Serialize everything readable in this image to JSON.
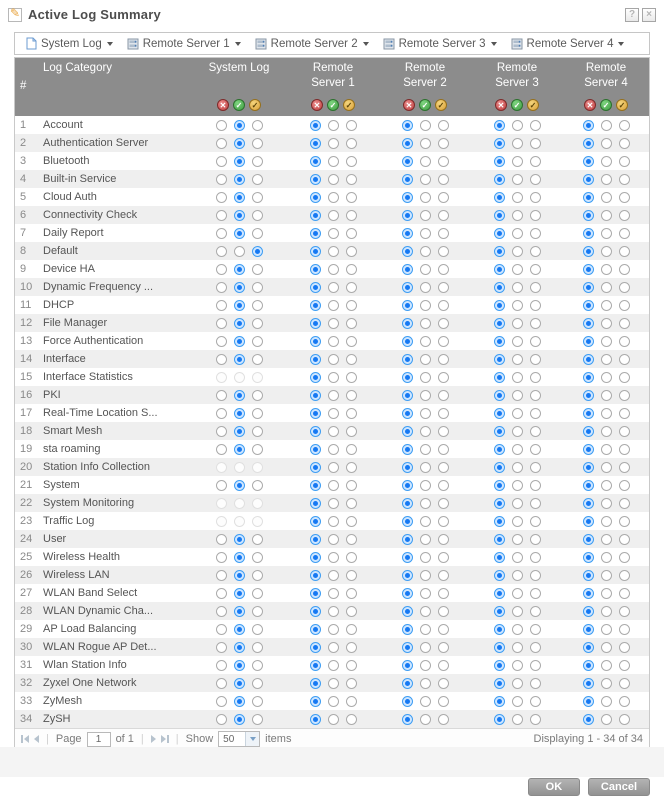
{
  "window": {
    "title": "Active Log Summary",
    "help_label": "?",
    "close_label": "×"
  },
  "colors": {
    "header_bg": "#8c8c8c",
    "row_alt": "#efefef",
    "accent_blue": "#3d9df3",
    "disable_red": "#bf4040",
    "enable_green": "#3f9e41",
    "debug_yellow": "#dba23a",
    "button_gray": "#9a9a9a"
  },
  "toolbar": {
    "buttons": [
      {
        "label": "System Log",
        "icon": "file-icon"
      },
      {
        "label": "Remote Server 1",
        "icon": "server-icon"
      },
      {
        "label": "Remote Server 2",
        "icon": "server-icon"
      },
      {
        "label": "Remote Server 3",
        "icon": "server-icon"
      },
      {
        "label": "Remote Server 4",
        "icon": "server-icon"
      }
    ]
  },
  "table": {
    "header": {
      "num": "#",
      "category": "Log Category",
      "columns": [
        [
          "System Log"
        ],
        [
          "Remote",
          "Server 1"
        ],
        [
          "Remote",
          "Server 2"
        ],
        [
          "Remote",
          "Server 3"
        ],
        [
          "Remote",
          "Server 4"
        ]
      ],
      "legend_meaning": [
        "disable",
        "enable",
        "debug"
      ]
    },
    "rows": [
      {
        "num": "1",
        "label": "Account",
        "sel": [
          1,
          0,
          0,
          0,
          0
        ]
      },
      {
        "num": "2",
        "label": "Authentication Server",
        "sel": [
          1,
          0,
          0,
          0,
          0
        ]
      },
      {
        "num": "3",
        "label": "Bluetooth",
        "sel": [
          1,
          0,
          0,
          0,
          0
        ]
      },
      {
        "num": "4",
        "label": "Built-in Service",
        "sel": [
          1,
          0,
          0,
          0,
          0
        ]
      },
      {
        "num": "5",
        "label": "Cloud Auth",
        "sel": [
          1,
          0,
          0,
          0,
          0
        ]
      },
      {
        "num": "6",
        "label": "Connectivity Check",
        "sel": [
          1,
          0,
          0,
          0,
          0
        ]
      },
      {
        "num": "7",
        "label": "Daily Report",
        "sel": [
          1,
          0,
          0,
          0,
          0
        ]
      },
      {
        "num": "8",
        "label": "Default",
        "sel": [
          2,
          0,
          0,
          0,
          0
        ]
      },
      {
        "num": "9",
        "label": "Device HA",
        "sel": [
          1,
          0,
          0,
          0,
          0
        ]
      },
      {
        "num": "10",
        "label": "Dynamic Frequency ...",
        "sel": [
          1,
          0,
          0,
          0,
          0
        ]
      },
      {
        "num": "11",
        "label": "DHCP",
        "sel": [
          1,
          0,
          0,
          0,
          0
        ]
      },
      {
        "num": "12",
        "label": "File Manager",
        "sel": [
          1,
          0,
          0,
          0,
          0
        ]
      },
      {
        "num": "13",
        "label": "Force Authentication",
        "sel": [
          1,
          0,
          0,
          0,
          0
        ]
      },
      {
        "num": "14",
        "label": "Interface",
        "sel": [
          1,
          0,
          0,
          0,
          0
        ]
      },
      {
        "num": "15",
        "label": "Interface Statistics",
        "sel": [
          -1,
          0,
          0,
          0,
          0
        ]
      },
      {
        "num": "16",
        "label": "PKI",
        "sel": [
          1,
          0,
          0,
          0,
          0
        ]
      },
      {
        "num": "17",
        "label": "Real-Time Location S...",
        "sel": [
          1,
          0,
          0,
          0,
          0
        ]
      },
      {
        "num": "18",
        "label": "Smart Mesh",
        "sel": [
          1,
          0,
          0,
          0,
          0
        ]
      },
      {
        "num": "19",
        "label": "sta roaming",
        "sel": [
          1,
          0,
          0,
          0,
          0
        ]
      },
      {
        "num": "20",
        "label": "Station Info Collection",
        "sel": [
          -1,
          0,
          0,
          0,
          0
        ]
      },
      {
        "num": "21",
        "label": "System",
        "sel": [
          1,
          0,
          0,
          0,
          0
        ]
      },
      {
        "num": "22",
        "label": "System Monitoring",
        "sel": [
          -1,
          0,
          0,
          0,
          0
        ]
      },
      {
        "num": "23",
        "label": "Traffic Log",
        "sel": [
          -1,
          0,
          0,
          0,
          0
        ]
      },
      {
        "num": "24",
        "label": "User",
        "sel": [
          1,
          0,
          0,
          0,
          0
        ]
      },
      {
        "num": "25",
        "label": "Wireless Health",
        "sel": [
          1,
          0,
          0,
          0,
          0
        ]
      },
      {
        "num": "26",
        "label": "Wireless LAN",
        "sel": [
          1,
          0,
          0,
          0,
          0
        ]
      },
      {
        "num": "27",
        "label": "WLAN Band Select",
        "sel": [
          1,
          0,
          0,
          0,
          0
        ]
      },
      {
        "num": "28",
        "label": "WLAN Dynamic Cha...",
        "sel": [
          1,
          0,
          0,
          0,
          0
        ]
      },
      {
        "num": "29",
        "label": "AP Load Balancing",
        "sel": [
          1,
          0,
          0,
          0,
          0
        ]
      },
      {
        "num": "30",
        "label": "WLAN Rogue AP Det...",
        "sel": [
          1,
          0,
          0,
          0,
          0
        ]
      },
      {
        "num": "31",
        "label": "Wlan Station Info",
        "sel": [
          1,
          0,
          0,
          0,
          0
        ]
      },
      {
        "num": "32",
        "label": "Zyxel One Network",
        "sel": [
          1,
          0,
          0,
          0,
          0
        ]
      },
      {
        "num": "33",
        "label": "ZyMesh",
        "sel": [
          1,
          0,
          0,
          0,
          0
        ]
      },
      {
        "num": "34",
        "label": "ZySH",
        "sel": [
          1,
          0,
          0,
          0,
          0
        ]
      }
    ]
  },
  "footer": {
    "page_label": "Page",
    "page_value": "1",
    "of_label": "of 1",
    "show_label": "Show",
    "show_value": "50",
    "items_label": "items",
    "displaying": "Displaying 1 - 34 of 34"
  },
  "buttons": {
    "ok": "OK",
    "cancel": "Cancel"
  }
}
